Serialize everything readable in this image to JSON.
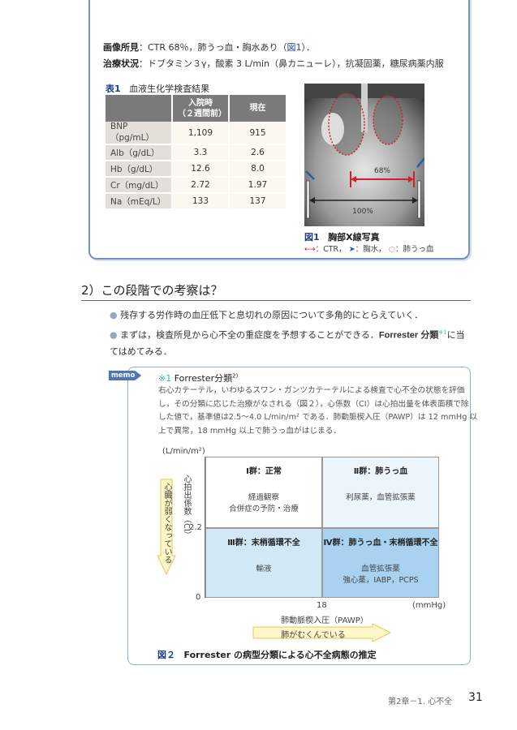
{
  "findings": {
    "imaging_label": "画像所見",
    "imaging_text": "：CTR 68％，肺うっ血・胸水あり（",
    "imaging_ref": "図1",
    "imaging_end": "）．",
    "treatment_label": "治療状況",
    "treatment_text": "：ドブタミン３γ，酸素 3 L/min（鼻カニューレ），抗凝固薬，糖尿病薬内服"
  },
  "table1": {
    "number": "表1",
    "title": "血液生化学検査結果",
    "header_admit_1": "入院時",
    "header_admit_2": "（２週間前）",
    "header_now": "現在",
    "rows": [
      {
        "item": "BNP（pg/mL）",
        "admit": "1,109",
        "now": "915"
      },
      {
        "item": "Alb（g/dL）",
        "admit": "3.3",
        "now": "2.6"
      },
      {
        "item": "Hb（g/dL）",
        "admit": "12.6",
        "now": "8.0"
      },
      {
        "item": "Cr（mg/dL）",
        "admit": "2.72",
        "now": "1.97"
      },
      {
        "item": "Na（mEq/L）",
        "admit": "133",
        "now": "137"
      }
    ]
  },
  "figure1": {
    "number": "図1",
    "title": "胸部X線写真",
    "ctr_label": "68%",
    "width_label": "100%",
    "legend_ctr": "：CTR，",
    "legend_effusion": "：胸水，",
    "legend_congestion": "：肺うっ血",
    "colors": {
      "ctr": "#d21f2b",
      "effusion": "#1f5fae"
    }
  },
  "section": {
    "heading": "2）この段階での考察は？",
    "bullets": [
      "残存する労作時の血圧低下と息切れの原因について多角的にとらえていく．",
      "まずは，検査所見から心不全の重症度を予想することができる．"
    ],
    "bullet2_term": "Forrester 分類",
    "bullet2_note": "※1",
    "bullet2_end": "に当てはめてみる．"
  },
  "memo": {
    "tag": "memo",
    "note_mark": "※1",
    "title": "Forrester分類",
    "ref": "2)",
    "lines": [
      "右心カテーテル，いわゆるスワン・ガンツカテーテルによる検査で心不全の状態を評価",
      "し，その分類に応じた治療がなされる（図２），心係数（CI）は心拍出量を体表面積で除",
      "した値で，基準値は2.5～4.0 L/min/m² である．肺動脈楔入圧（PAWP）は 12 mmHg 以",
      "上で異常，18 mmHg 以上で肺うっ血がはじまる．"
    ]
  },
  "figure2": {
    "number": "図２",
    "title": "Forrester の病型分類による心不全病態の推定",
    "y_unit": "(L/min/m²)",
    "y_label": "心拍出係数（CI）",
    "y_tick_mid": "2.2",
    "y_tick_zero": "0",
    "x_tick_mid": "18",
    "x_unit": "(mmHg)",
    "x_label": "肺動脈楔入圧（PAWP）",
    "y_arrow": "心臓が弱くなっている",
    "x_arrow": "肺がむくんでいる",
    "quadrants": [
      {
        "title": "Ⅰ群：正常",
        "body1": "経過観察",
        "body2": "合併症の予防・治療",
        "color": "#ffffff"
      },
      {
        "title": "Ⅱ群：肺うっ血",
        "body1": "利尿薬，血管拡張薬",
        "body2": "",
        "color": "#edf5fc"
      },
      {
        "title": "Ⅲ群：末梢循環不全",
        "body1": "輸液",
        "body2": "",
        "color": "#d3e8f7"
      },
      {
        "title": "Ⅳ群：肺うっ血・末梢循環不全",
        "body1": "血管拡張薬",
        "body2": "強心薬，IABP，PCPS",
        "color": "#a9d2f0"
      }
    ]
  },
  "footer": {
    "chapter": "第2章－1. 心不全",
    "page": "31"
  }
}
